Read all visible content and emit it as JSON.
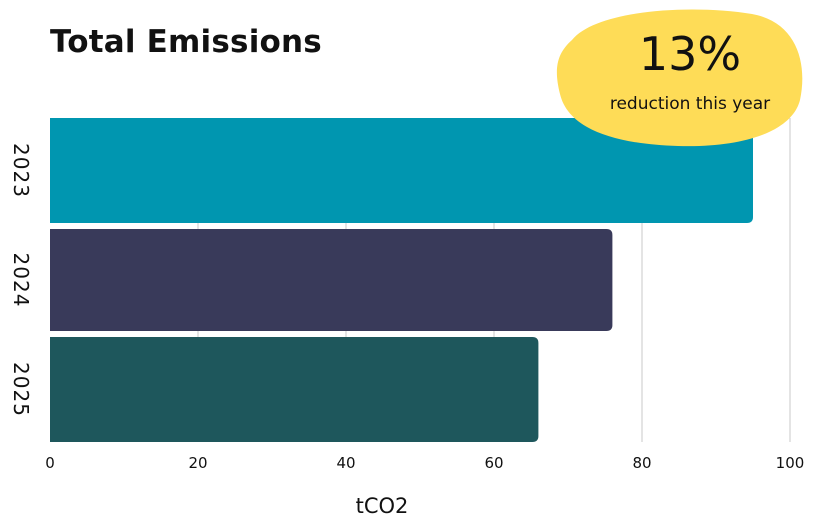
{
  "chart_data": {
    "type": "bar",
    "orientation": "horizontal",
    "title": "Total Emissions",
    "categories": [
      "2023",
      "2024",
      "2025"
    ],
    "values": [
      95,
      76,
      66
    ],
    "colors": [
      "#0096b0",
      "#393a5a",
      "#1e575c"
    ],
    "xlabel": "tCO2",
    "ylabel": "",
    "xlim": [
      0,
      100
    ],
    "xticks": [
      0,
      20,
      40,
      60,
      80,
      100
    ],
    "grid": true
  },
  "callout": {
    "value": "13%",
    "text": "reduction this year",
    "color": "#fedc57"
  }
}
